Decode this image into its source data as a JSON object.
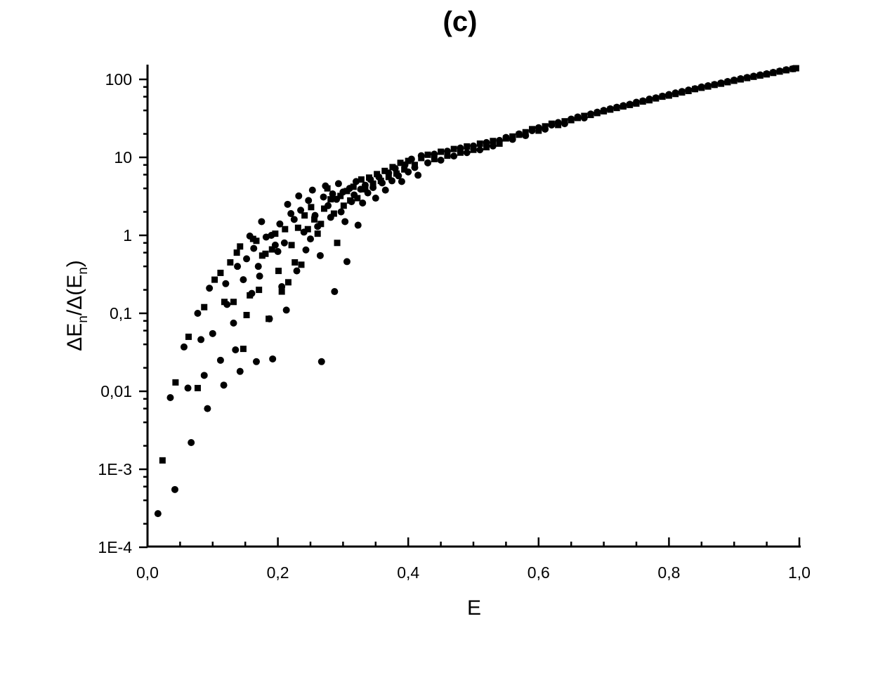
{
  "chart_data": {
    "type": "scatter",
    "title": "(c)",
    "xlabel": "E",
    "ylabel": {
      "parts": [
        "ΔE",
        "n",
        "/Δ(E",
        "n",
        ")"
      ]
    },
    "xlim": [
      0.0,
      1.0
    ],
    "ylim": [
      0.0001,
      150
    ],
    "yscale": "log",
    "grid": false,
    "legend": "none",
    "x_ticks": [
      {
        "value": 0.0,
        "label": "0,0"
      },
      {
        "value": 0.2,
        "label": "0,2"
      },
      {
        "value": 0.4,
        "label": "0,4"
      },
      {
        "value": 0.6,
        "label": "0,6"
      },
      {
        "value": 0.8,
        "label": "0,8"
      },
      {
        "value": 1.0,
        "label": "1,0"
      }
    ],
    "y_ticks": [
      {
        "value": 0.0001,
        "label": "1E-4"
      },
      {
        "value": 0.001,
        "label": "1E-3"
      },
      {
        "value": 0.01,
        "label": "0,01"
      },
      {
        "value": 0.1,
        "label": "0,1"
      },
      {
        "value": 1,
        "label": "1"
      },
      {
        "value": 10,
        "label": "10"
      },
      {
        "value": 100,
        "label": "100"
      }
    ],
    "series": [
      {
        "marker": "circle",
        "color": "#000000",
        "points": [
          [
            0.016,
            0.00027
          ],
          [
            0.035,
            0.0083
          ],
          [
            0.042,
            0.00055
          ],
          [
            0.056,
            0.037
          ],
          [
            0.062,
            0.011
          ],
          [
            0.067,
            0.0022
          ],
          [
            0.077,
            0.1
          ],
          [
            0.082,
            0.046
          ],
          [
            0.087,
            0.016
          ],
          [
            0.092,
            0.006
          ],
          [
            0.095,
            0.21
          ],
          [
            0.1,
            0.055
          ],
          [
            0.112,
            0.025
          ],
          [
            0.117,
            0.012
          ],
          [
            0.12,
            0.24
          ],
          [
            0.122,
            0.13
          ],
          [
            0.132,
            0.075
          ],
          [
            0.135,
            0.034
          ],
          [
            0.138,
            0.4
          ],
          [
            0.142,
            0.018
          ],
          [
            0.147,
            0.27
          ],
          [
            0.152,
            0.5
          ],
          [
            0.157,
            0.98
          ],
          [
            0.16,
            0.18
          ],
          [
            0.163,
            0.68
          ],
          [
            0.167,
            0.024
          ],
          [
            0.17,
            0.4
          ],
          [
            0.172,
            0.3
          ],
          [
            0.175,
            1.5
          ],
          [
            0.182,
            0.95
          ],
          [
            0.187,
            0.085
          ],
          [
            0.19,
            1.0
          ],
          [
            0.192,
            0.026
          ],
          [
            0.196,
            0.75
          ],
          [
            0.2,
            0.62
          ],
          [
            0.203,
            1.4
          ],
          [
            0.206,
            0.22
          ],
          [
            0.21,
            0.8
          ],
          [
            0.213,
            0.11
          ],
          [
            0.215,
            2.5
          ],
          [
            0.22,
            1.9
          ],
          [
            0.225,
            1.6
          ],
          [
            0.229,
            0.35
          ],
          [
            0.232,
            3.2
          ],
          [
            0.235,
            2.1
          ],
          [
            0.24,
            1.1
          ],
          [
            0.243,
            0.65
          ],
          [
            0.247,
            2.8
          ],
          [
            0.25,
            0.9
          ],
          [
            0.253,
            3.8
          ],
          [
            0.257,
            1.8
          ],
          [
            0.261,
            1.3
          ],
          [
            0.265,
            0.55
          ],
          [
            0.267,
            0.024
          ],
          [
            0.27,
            3.1
          ],
          [
            0.273,
            4.3
          ],
          [
            0.277,
            2.4
          ],
          [
            0.281,
            1.7
          ],
          [
            0.284,
            3.4
          ],
          [
            0.287,
            0.19
          ],
          [
            0.29,
            2.9
          ],
          [
            0.293,
            4.6
          ],
          [
            0.297,
            2.0
          ],
          [
            0.3,
            3.6
          ],
          [
            0.303,
            1.5
          ],
          [
            0.306,
            0.46
          ],
          [
            0.31,
            4.0
          ],
          [
            0.313,
            2.7
          ],
          [
            0.317,
            3.3
          ],
          [
            0.32,
            4.9
          ],
          [
            0.323,
            1.35
          ],
          [
            0.327,
            3.9
          ],
          [
            0.33,
            2.6
          ],
          [
            0.334,
            4.4
          ],
          [
            0.338,
            3.5
          ],
          [
            0.342,
            5.2
          ],
          [
            0.346,
            4.1
          ],
          [
            0.35,
            3.0
          ],
          [
            0.355,
            5.6
          ],
          [
            0.36,
            4.7
          ],
          [
            0.365,
            3.8
          ],
          [
            0.37,
            6.3
          ],
          [
            0.375,
            5.0
          ],
          [
            0.38,
            7.2
          ],
          [
            0.385,
            5.8
          ],
          [
            0.39,
            4.9
          ],
          [
            0.395,
            8.0
          ],
          [
            0.4,
            6.5
          ],
          [
            0.405,
            9.5
          ],
          [
            0.41,
            7.4
          ],
          [
            0.415,
            5.9
          ],
          [
            0.42,
            10.5
          ],
          [
            0.43,
            8.5
          ],
          [
            0.44,
            11.0
          ],
          [
            0.45,
            9.2
          ],
          [
            0.46,
            12.0
          ],
          [
            0.47,
            10.4
          ],
          [
            0.48,
            13.2
          ],
          [
            0.49,
            11.5
          ],
          [
            0.5,
            14.0
          ],
          [
            0.51,
            12.5
          ],
          [
            0.52,
            15.5
          ],
          [
            0.53,
            14.0
          ],
          [
            0.54,
            16.5
          ],
          [
            0.55,
            18.0
          ],
          [
            0.56,
            17.0
          ],
          [
            0.57,
            20.0
          ],
          [
            0.58,
            19.0
          ],
          [
            0.59,
            22.0
          ],
          [
            0.6,
            24.0
          ],
          [
            0.61,
            23.0
          ],
          [
            0.62,
            26.0
          ],
          [
            0.63,
            28.0
          ],
          [
            0.64,
            27.0
          ],
          [
            0.65,
            31.0
          ],
          [
            0.66,
            33.0
          ],
          [
            0.67,
            32.0
          ],
          [
            0.68,
            36.0
          ],
          [
            0.69,
            38.0
          ],
          [
            0.7,
            40.0
          ],
          [
            0.71,
            42.0
          ],
          [
            0.72,
            44.0
          ],
          [
            0.73,
            46.0
          ],
          [
            0.74,
            48.0
          ],
          [
            0.75,
            51.0
          ],
          [
            0.76,
            53.0
          ],
          [
            0.77,
            56.0
          ],
          [
            0.78,
            58.0
          ],
          [
            0.79,
            61.0
          ],
          [
            0.8,
            64.0
          ],
          [
            0.81,
            67.0
          ],
          [
            0.82,
            70.0
          ],
          [
            0.83,
            73.0
          ],
          [
            0.84,
            76.0
          ],
          [
            0.85,
            80.0
          ],
          [
            0.86,
            83.0
          ],
          [
            0.87,
            86.0
          ],
          [
            0.88,
            90.0
          ],
          [
            0.89,
            94.0
          ],
          [
            0.9,
            98.0
          ],
          [
            0.91,
            102.0
          ],
          [
            0.92,
            106.0
          ],
          [
            0.93,
            110.0
          ],
          [
            0.94,
            114.0
          ],
          [
            0.95,
            118.0
          ],
          [
            0.96,
            123.0
          ],
          [
            0.97,
            128.0
          ],
          [
            0.98,
            133.0
          ],
          [
            0.99,
            137.0
          ]
        ]
      },
      {
        "marker": "square",
        "color": "#000000",
        "points": [
          [
            0.023,
            0.0013
          ],
          [
            0.043,
            0.013
          ],
          [
            0.063,
            0.05
          ],
          [
            0.077,
            0.011
          ],
          [
            0.087,
            0.12
          ],
          [
            0.103,
            0.27
          ],
          [
            0.112,
            0.33
          ],
          [
            0.118,
            0.14
          ],
          [
            0.127,
            0.45
          ],
          [
            0.132,
            0.14
          ],
          [
            0.137,
            0.6
          ],
          [
            0.142,
            0.72
          ],
          [
            0.147,
            0.035
          ],
          [
            0.152,
            0.095
          ],
          [
            0.157,
            0.17
          ],
          [
            0.162,
            0.9
          ],
          [
            0.167,
            0.85
          ],
          [
            0.171,
            0.2
          ],
          [
            0.176,
            0.55
          ],
          [
            0.181,
            0.58
          ],
          [
            0.186,
            0.085
          ],
          [
            0.191,
            0.66
          ],
          [
            0.196,
            1.05
          ],
          [
            0.201,
            0.35
          ],
          [
            0.206,
            0.19
          ],
          [
            0.211,
            1.2
          ],
          [
            0.216,
            0.25
          ],
          [
            0.221,
            0.75
          ],
          [
            0.226,
            0.45
          ],
          [
            0.231,
            1.25
          ],
          [
            0.236,
            0.42
          ],
          [
            0.241,
            1.8
          ],
          [
            0.246,
            1.2
          ],
          [
            0.251,
            2.3
          ],
          [
            0.256,
            1.6
          ],
          [
            0.261,
            1.05
          ],
          [
            0.266,
            1.4
          ],
          [
            0.271,
            2.2
          ],
          [
            0.276,
            4.0
          ],
          [
            0.281,
            2.9
          ],
          [
            0.286,
            1.9
          ],
          [
            0.291,
            0.8
          ],
          [
            0.296,
            3.2
          ],
          [
            0.301,
            2.4
          ],
          [
            0.306,
            3.7
          ],
          [
            0.311,
            2.8
          ],
          [
            0.316,
            4.2
          ],
          [
            0.322,
            3.0
          ],
          [
            0.328,
            5.2
          ],
          [
            0.334,
            3.9
          ],
          [
            0.34,
            5.5
          ],
          [
            0.346,
            4.6
          ],
          [
            0.352,
            6.1
          ],
          [
            0.358,
            5.0
          ],
          [
            0.364,
            6.7
          ],
          [
            0.37,
            5.6
          ],
          [
            0.376,
            7.5
          ],
          [
            0.382,
            6.2
          ],
          [
            0.388,
            8.5
          ],
          [
            0.394,
            7.0
          ],
          [
            0.4,
            9.0
          ],
          [
            0.41,
            8.0
          ],
          [
            0.42,
            9.8
          ],
          [
            0.43,
            10.8
          ],
          [
            0.44,
            9.5
          ],
          [
            0.45,
            11.8
          ],
          [
            0.46,
            10.5
          ],
          [
            0.47,
            12.8
          ],
          [
            0.48,
            11.5
          ],
          [
            0.49,
            13.8
          ],
          [
            0.5,
            12.5
          ],
          [
            0.51,
            15.0
          ],
          [
            0.52,
            13.5
          ],
          [
            0.53,
            16.2
          ],
          [
            0.54,
            15.0
          ],
          [
            0.55,
            17.5
          ],
          [
            0.56,
            18.5
          ],
          [
            0.57,
            19.5
          ],
          [
            0.58,
            21.0
          ],
          [
            0.59,
            23.0
          ],
          [
            0.6,
            22.0
          ],
          [
            0.61,
            25.0
          ],
          [
            0.62,
            27.0
          ],
          [
            0.63,
            26.0
          ],
          [
            0.64,
            29.0
          ],
          [
            0.65,
            30.0
          ],
          [
            0.66,
            32.0
          ],
          [
            0.67,
            34.0
          ],
          [
            0.68,
            35.0
          ],
          [
            0.69,
            37.0
          ],
          [
            0.7,
            39.0
          ],
          [
            0.71,
            41.0
          ],
          [
            0.72,
            43.0
          ],
          [
            0.73,
            45.0
          ],
          [
            0.74,
            47.0
          ],
          [
            0.75,
            49.0
          ],
          [
            0.76,
            52.0
          ],
          [
            0.77,
            54.0
          ],
          [
            0.78,
            57.0
          ],
          [
            0.79,
            60.0
          ],
          [
            0.8,
            62.0
          ],
          [
            0.81,
            65.0
          ],
          [
            0.82,
            68.0
          ],
          [
            0.83,
            71.0
          ],
          [
            0.84,
            75.0
          ],
          [
            0.85,
            78.0
          ],
          [
            0.86,
            81.0
          ],
          [
            0.87,
            85.0
          ],
          [
            0.88,
            88.0
          ],
          [
            0.89,
            92.0
          ],
          [
            0.9,
            96.0
          ],
          [
            0.91,
            100.0
          ],
          [
            0.92,
            104.0
          ],
          [
            0.93,
            108.0
          ],
          [
            0.94,
            112.0
          ],
          [
            0.95,
            116.0
          ],
          [
            0.96,
            121.0
          ],
          [
            0.97,
            126.0
          ],
          [
            0.98,
            131.0
          ],
          [
            0.99,
            136.0
          ],
          [
            0.995,
            139.0
          ]
        ]
      }
    ]
  }
}
